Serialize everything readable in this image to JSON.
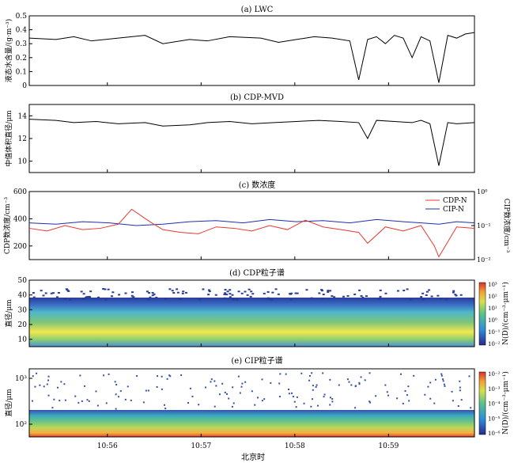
{
  "x_axis": {
    "label": "北京时",
    "ticks": [
      "10:56",
      "10:57",
      "10:58",
      "10:59"
    ],
    "range": [
      "10:55:10",
      "10:59:55"
    ]
  },
  "chart_data": [
    {
      "type": "line",
      "title": "(a) LWC",
      "ylabel": "液态水含量/(g·m⁻³)",
      "ylim": [
        0,
        0.5
      ],
      "yticks": [
        "0",
        "0.1",
        "0.2",
        "0.3",
        "0.4",
        "0.5"
      ],
      "series": [
        {
          "color": "#000000",
          "x": [
            0,
            0.06,
            0.1,
            0.14,
            0.2,
            0.26,
            0.3,
            0.36,
            0.4,
            0.45,
            0.52,
            0.56,
            0.6,
            0.64,
            0.68,
            0.72,
            0.74,
            0.76,
            0.78,
            0.8,
            0.82,
            0.84,
            0.86,
            0.88,
            0.9,
            0.92,
            0.94,
            0.96,
            0.98,
            1
          ],
          "y": [
            0.34,
            0.33,
            0.35,
            0.32,
            0.34,
            0.36,
            0.3,
            0.33,
            0.32,
            0.35,
            0.34,
            0.31,
            0.33,
            0.35,
            0.34,
            0.32,
            0.04,
            0.33,
            0.35,
            0.3,
            0.36,
            0.34,
            0.2,
            0.35,
            0.32,
            0.02,
            0.36,
            0.34,
            0.37,
            0.38
          ]
        }
      ]
    },
    {
      "type": "line",
      "title": "(b) CDP-MVD",
      "ylabel": "中值体积直径/μm",
      "ylim": [
        9,
        15
      ],
      "yticks": [
        "10",
        "12",
        "14"
      ],
      "series": [
        {
          "color": "#000000",
          "x": [
            0,
            0.06,
            0.1,
            0.15,
            0.2,
            0.26,
            0.3,
            0.36,
            0.4,
            0.45,
            0.5,
            0.55,
            0.6,
            0.65,
            0.7,
            0.74,
            0.76,
            0.78,
            0.82,
            0.86,
            0.88,
            0.9,
            0.92,
            0.94,
            0.96,
            1
          ],
          "y": [
            13.7,
            13.6,
            13.4,
            13.5,
            13.3,
            13.4,
            13.1,
            13.2,
            13.4,
            13.5,
            13.3,
            13.4,
            13.5,
            13.6,
            13.5,
            13.4,
            12.0,
            13.6,
            13.5,
            13.4,
            13.6,
            13.3,
            9.6,
            13.4,
            13.3,
            13.4
          ]
        }
      ]
    },
    {
      "type": "line",
      "title": "(c) 数浓度",
      "ylabel": "CDP数浓度/cm⁻³",
      "y2label": "CIP数浓度/cm⁻³",
      "ylim": [
        100,
        600
      ],
      "yticks": [
        "200",
        "400",
        "600"
      ],
      "y2_scale": "log",
      "y2lim": [
        0.01,
        1
      ],
      "y2ticks": [
        "10⁻²",
        "10⁻¹",
        "10⁰"
      ],
      "legend": "top-right",
      "series": [
        {
          "name": "CDP-N",
          "color": "#e8382f",
          "axis": "left",
          "x": [
            0,
            0.04,
            0.08,
            0.12,
            0.16,
            0.2,
            0.23,
            0.27,
            0.3,
            0.34,
            0.38,
            0.42,
            0.46,
            0.5,
            0.54,
            0.58,
            0.62,
            0.66,
            0.7,
            0.74,
            0.76,
            0.8,
            0.84,
            0.88,
            0.91,
            0.92,
            0.96,
            1
          ],
          "y": [
            330,
            310,
            350,
            320,
            330,
            360,
            470,
            380,
            320,
            300,
            290,
            340,
            330,
            310,
            350,
            320,
            390,
            340,
            320,
            300,
            220,
            340,
            310,
            350,
            200,
            120,
            340,
            330
          ]
        },
        {
          "name": "CIP-N",
          "color": "#1f2fa8",
          "axis": "right",
          "x": [
            0,
            0.06,
            0.12,
            0.18,
            0.24,
            0.3,
            0.36,
            0.42,
            0.48,
            0.54,
            0.6,
            0.66,
            0.72,
            0.78,
            0.84,
            0.88,
            0.92,
            0.96,
            1
          ],
          "y": [
            0.12,
            0.11,
            0.13,
            0.12,
            0.1,
            0.11,
            0.13,
            0.14,
            0.12,
            0.15,
            0.13,
            0.14,
            0.12,
            0.15,
            0.13,
            0.12,
            0.11,
            0.13,
            0.12
          ]
        }
      ]
    },
    {
      "type": "heatmap",
      "title": "(d) CDP粒子谱",
      "ylabel": "直径/μm",
      "ylim": [
        5,
        50
      ],
      "yticks": [
        "10",
        "20",
        "30",
        "40",
        "50"
      ],
      "colorbar_label": "N(D)/(cm⁻³·μm⁻¹)",
      "colorbar_ticks": [
        "10³",
        "10²",
        "10¹",
        "10⁰",
        "10⁻¹",
        "10⁻²"
      ]
    },
    {
      "type": "heatmap",
      "title": "(e) CIP粒子谱",
      "ylabel": "直径/μm",
      "y_scale": "log",
      "yticks": [
        "10³",
        "10²"
      ],
      "colorbar_label": "N(D)/(cm⁻³·μm⁻¹)",
      "colorbar_ticks": [
        "10⁻²",
        "10⁻³",
        "10⁻⁴",
        "10⁻⁵",
        "10⁻⁶"
      ]
    }
  ]
}
